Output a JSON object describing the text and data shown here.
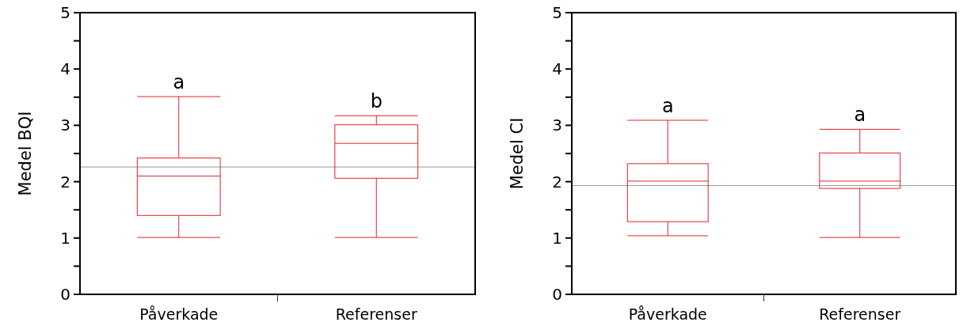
{
  "chart_data": [
    {
      "type": "box",
      "ylabel": "Medel BQI",
      "categories": [
        "Påverkade",
        "Referenser"
      ],
      "color": "#e8202a",
      "ylim": [
        0,
        5
      ],
      "yticks": [
        0,
        {
          "value": 0.5,
          "label": null
        },
        1,
        {
          "value": 1.5,
          "label": null
        },
        2,
        {
          "value": 2.5,
          "label": null
        },
        3,
        {
          "value": 3.5,
          "label": null
        },
        4,
        {
          "value": 4.5,
          "label": null
        },
        5
      ],
      "boxes": [
        {
          "low": 1.01,
          "q1": 1.4,
          "median": 2.1,
          "q3": 2.42,
          "high": 3.51
        },
        {
          "low": 1.01,
          "q1": 2.06,
          "median": 2.68,
          "q3": 3.01,
          "high": 3.17
        }
      ],
      "ref_lines": [
        {
          "axis": "y",
          "value": 2.26,
          "color": "#999999"
        }
      ],
      "annotations": [
        "a",
        "b"
      ],
      "grid": false
    },
    {
      "type": "box",
      "ylabel": "Medel CI",
      "categories": [
        "Påverkade",
        "Referenser"
      ],
      "color": "#e8202a",
      "ylim": [
        0,
        5
      ],
      "yticks": [
        0,
        {
          "value": 0.5,
          "label": null
        },
        1,
        {
          "value": 1.5,
          "label": null
        },
        2,
        {
          "value": 2.5,
          "label": null
        },
        3,
        {
          "value": 3.5,
          "label": null
        },
        4,
        {
          "value": 4.5,
          "label": null
        },
        5
      ],
      "boxes": [
        {
          "low": 1.04,
          "q1": 1.29,
          "median": 2.01,
          "q3": 2.32,
          "high": 3.09
        },
        {
          "low": 1.01,
          "q1": 1.88,
          "median": 2.01,
          "q3": 2.51,
          "high": 2.93
        }
      ],
      "ref_lines": [
        {
          "axis": "y",
          "value": 1.93,
          "color": "#999999"
        }
      ],
      "annotations": [
        "a",
        "a"
      ],
      "grid": false
    }
  ]
}
